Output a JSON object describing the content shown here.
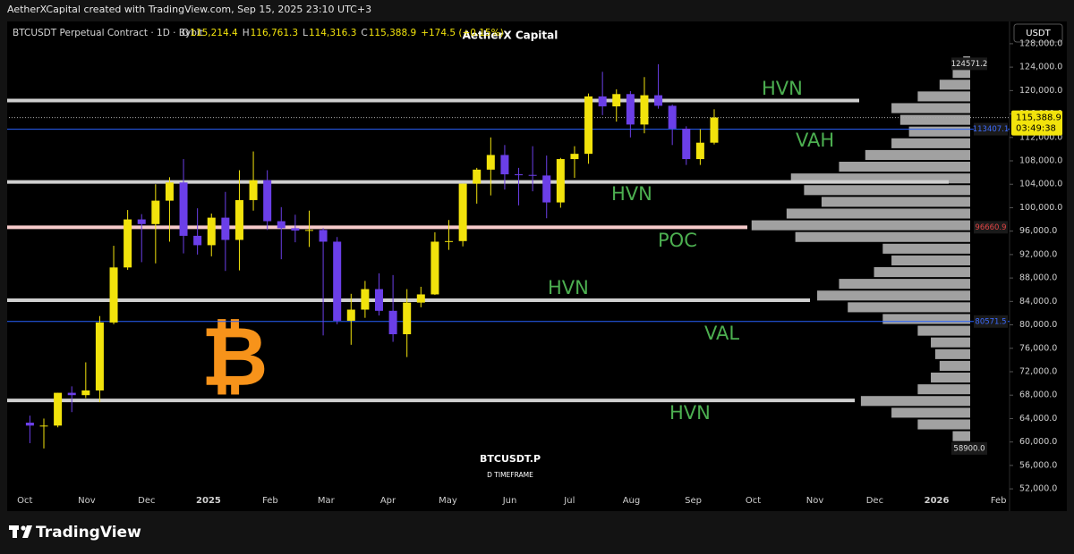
{
  "chart_data": {
    "type": "candlestick",
    "credit": "AetherXCapital created with TradingView.com, Sep 15, 2025 23:10 UTC+3",
    "title": "AetherX Capital",
    "symbol": "BTCUSDT Perpetual Contract · 1D · Bybit",
    "ohlc": [
      {
        "key": "O",
        "value": "115,214.4"
      },
      {
        "key": "H",
        "value": "116,761.3"
      },
      {
        "key": "L",
        "value": "114,316.3"
      },
      {
        "key": "C",
        "value": "115,388.9"
      }
    ],
    "change": "+174.5 (+0.15%)",
    "currency": "USDT",
    "watermark": "BTCUSDT.P",
    "timeframe": "D TIMEFRAME",
    "logo_symbol": "₿",
    "brand": "TradingView",
    "up_color": "#f2e30c",
    "down_color": "#6b3fe8",
    "grid": false,
    "xlim": [
      -1,
      70.65
    ],
    "xticks": [
      {
        "value": 0.14,
        "label": "Oct"
      },
      {
        "value": 4.57,
        "label": "Nov"
      },
      {
        "value": 8.86,
        "label": "Dec"
      },
      {
        "value": 13.29,
        "label": "2025"
      },
      {
        "value": 17.71,
        "label": "Feb"
      },
      {
        "value": 21.71,
        "label": "Mar"
      },
      {
        "value": 26.14,
        "label": "Apr"
      },
      {
        "value": 30.43,
        "label": "May"
      },
      {
        "value": 34.86,
        "label": "Jun"
      },
      {
        "value": 39.14,
        "label": "Jul"
      },
      {
        "value": 43.57,
        "label": "Aug"
      },
      {
        "value": 48,
        "label": "Sep"
      },
      {
        "value": 52.29,
        "label": "Oct"
      },
      {
        "value": 56.71,
        "label": "Nov"
      },
      {
        "value": 61,
        "label": "Dec"
      },
      {
        "value": 65.43,
        "label": "2026"
      },
      {
        "value": 69.86,
        "label": "Feb"
      }
    ],
    "ylim": [
      48200,
      131800
    ],
    "yticks": [
      {
        "value": 52000,
        "label": "52,000.0"
      },
      {
        "value": 56000,
        "label": "56,000.0"
      },
      {
        "value": 60000,
        "label": "60,000.0"
      },
      {
        "value": 64000,
        "label": "64,000.0"
      },
      {
        "value": 68000,
        "label": "68,000.0"
      },
      {
        "value": 72000,
        "label": "72,000.0"
      },
      {
        "value": 76000,
        "label": "76,000.0"
      },
      {
        "value": 80000,
        "label": "80,000.0"
      },
      {
        "value": 84000,
        "label": "84,000.0"
      },
      {
        "value": 88000,
        "label": "88,000.0"
      },
      {
        "value": 92000,
        "label": "92,000.0"
      },
      {
        "value": 96000,
        "label": "96,000.0"
      },
      {
        "value": 100000,
        "label": "100,000.0"
      },
      {
        "value": 104000,
        "label": "104,000.0"
      },
      {
        "value": 108000,
        "label": "108,000.0"
      },
      {
        "value": 112000,
        "label": "112,000.0"
      },
      {
        "value": 116000,
        "label": "116,000.0"
      },
      {
        "value": 120000,
        "label": "120,000.0"
      },
      {
        "value": 124000,
        "label": "124,000.0"
      },
      {
        "value": 128000,
        "label": "128,000.0"
      }
    ],
    "x": [
      0.5,
      1.5,
      2.5,
      3.5,
      4.5,
      5.5,
      6.5,
      7.5,
      8.5,
      9.5,
      10.5,
      11.5,
      12.5,
      13.5,
      14.5,
      15.5,
      16.5,
      17.5,
      18.5,
      19.5,
      20.5,
      21.5,
      22.5,
      23.5,
      24.5,
      25.5,
      26.5,
      27.5,
      28.5,
      29.5,
      30.5,
      31.5,
      32.5,
      33.5,
      34.5,
      35.5,
      36.5,
      37.5,
      38.5,
      39.5,
      40.5,
      41.5,
      42.5,
      43.5,
      44.5,
      45.5,
      46.5,
      47.5,
      48.5,
      49.5
    ],
    "open": [
      63300,
      62800,
      62800,
      68400,
      68000,
      68800,
      80400,
      89800,
      98000,
      97200,
      101200,
      104300,
      95200,
      93600,
      98300,
      94500,
      101300,
      104700,
      97700,
      96500,
      96100,
      96200,
      94200,
      80700,
      82600,
      86100,
      82400,
      78400,
      83800,
      85200,
      94200,
      94300,
      104100,
      106500,
      109000,
      105700,
      105600,
      105500,
      100900,
      108300,
      109200,
      119000,
      117300,
      119400,
      114200,
      119200,
      117400,
      113500,
      108300,
      111100
    ],
    "high": [
      64500,
      64000,
      68400,
      69500,
      73600,
      81500,
      93500,
      99600,
      98900,
      104000,
      105200,
      108300,
      99900,
      99000,
      102700,
      106400,
      109600,
      106400,
      100100,
      98800,
      99500,
      96500,
      95000,
      85300,
      87500,
      88800,
      88500,
      86100,
      86500,
      95800,
      97900,
      104100,
      106800,
      112000,
      110700,
      106800,
      110500,
      108900,
      108500,
      110500,
      119500,
      123200,
      120200,
      119900,
      122300,
      124500,
      117600,
      113900,
      113400,
      116800
    ],
    "low": [
      59800,
      58900,
      62500,
      65100,
      67500,
      66800,
      80100,
      89400,
      90700,
      90500,
      94200,
      92200,
      92000,
      91700,
      89200,
      89300,
      99500,
      96200,
      91200,
      94100,
      93300,
      78200,
      80100,
      76600,
      81200,
      81600,
      77100,
      74500,
      83000,
      85100,
      92800,
      93400,
      100700,
      102100,
      103100,
      100400,
      102800,
      98200,
      100000,
      105100,
      107500,
      115800,
      114700,
      112000,
      112700,
      116900,
      110700,
      107300,
      107300,
      110800
    ],
    "close": [
      62800,
      62800,
      68400,
      68000,
      68800,
      80400,
      89800,
      98000,
      97200,
      101200,
      104300,
      95200,
      93600,
      98300,
      94500,
      101300,
      104700,
      97700,
      96500,
      96100,
      96200,
      94200,
      80700,
      82600,
      86100,
      82400,
      78400,
      83800,
      85200,
      94200,
      94300,
      104100,
      106500,
      109000,
      105700,
      105600,
      105500,
      100900,
      108300,
      109200,
      119000,
      117300,
      119400,
      114200,
      119200,
      117400,
      113500,
      108300,
      111100,
      115400
    ],
    "levels": [
      {
        "name": "HVN",
        "value": 118300,
        "color": "#cfcfcf"
      },
      {
        "name": "VAH",
        "value": 113407.1,
        "color": "#2962ff"
      },
      {
        "name": "HVN",
        "value": 104400,
        "color": "#cfcfcf"
      },
      {
        "name": "POC",
        "value": 96660.9,
        "color": "#f6caca"
      },
      {
        "name": "HVN",
        "value": 84200,
        "color": "#cfcfcf"
      },
      {
        "name": "VAL",
        "value": 80571.5,
        "color": "#2962ff"
      },
      {
        "name": "HVN",
        "value": 67100,
        "color": "#cfcfcf"
      }
    ],
    "price_tags": [
      {
        "value": 124571.2,
        "label": "124571.2",
        "color": "#e0e0e0"
      },
      {
        "value": 113407.1,
        "label": "113407.1",
        "color": "#3d6bff"
      },
      {
        "value": 96660.9,
        "label": "96660.9",
        "color": "#e04545"
      },
      {
        "value": 80571.5,
        "label": "80571.5",
        "color": "#3d6bff"
      },
      {
        "value": 58900,
        "label": "58900.0",
        "color": "#e0e0e0"
      }
    ],
    "last_price": {
      "value": 115388.9,
      "label": "115,388.9",
      "countdown": "03:49:38"
    },
    "volume_profile": {
      "bins": [
        58000,
        60000,
        62000,
        64000,
        66000,
        68000,
        70000,
        72000,
        74000,
        76000,
        78000,
        80000,
        82000,
        84000,
        86000,
        88000,
        90000,
        92000,
        94000,
        96000,
        98000,
        100000,
        102000,
        104000,
        106000,
        108000,
        110000,
        112000,
        114000,
        116000,
        118000,
        120000,
        122000,
        124000,
        126000
      ],
      "values": [
        6,
        20,
        60,
        90,
        125,
        60,
        45,
        35,
        40,
        45,
        60,
        100,
        140,
        175,
        150,
        110,
        90,
        100,
        200,
        250,
        210,
        170,
        190,
        205,
        150,
        120,
        90,
        70,
        80,
        90,
        60,
        35,
        20,
        8
      ],
      "xlim": [
        0,
        260
      ],
      "color": "#bdbdbd"
    }
  }
}
